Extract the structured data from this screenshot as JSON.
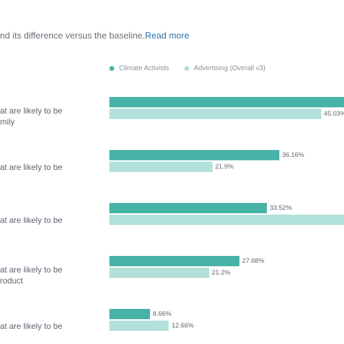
{
  "header": {
    "intro_text": "nd its difference versus the baseline.",
    "read_more_label": "Read more"
  },
  "colors": {
    "climate_activists": "#47b3a7",
    "advertising_overall": "#b2e0db"
  },
  "chart_data": {
    "type": "bar",
    "orientation": "horizontal",
    "categories": [
      [
        "at are likely to be",
        "mily"
      ],
      [
        "at are likely to be"
      ],
      [
        "at are likely to be"
      ],
      [
        "at are likely to be",
        "roduct"
      ],
      [
        "at are likely to be"
      ]
    ],
    "series": [
      {
        "name": "Climate Activists",
        "values": [
          null,
          36.16,
          33.52,
          27.68,
          8.66
        ],
        "labels": [
          "",
          "36.16%",
          "33.52%",
          "27.68%",
          "8.66%"
        ]
      },
      {
        "name": "Advertising (Overall v3)",
        "values": [
          45.03,
          21.9,
          null,
          21.2,
          12.66
        ],
        "labels": [
          "45.03%",
          "21.9%",
          "",
          "21.2%",
          "12.66%"
        ]
      }
    ],
    "legend_position": "top"
  }
}
